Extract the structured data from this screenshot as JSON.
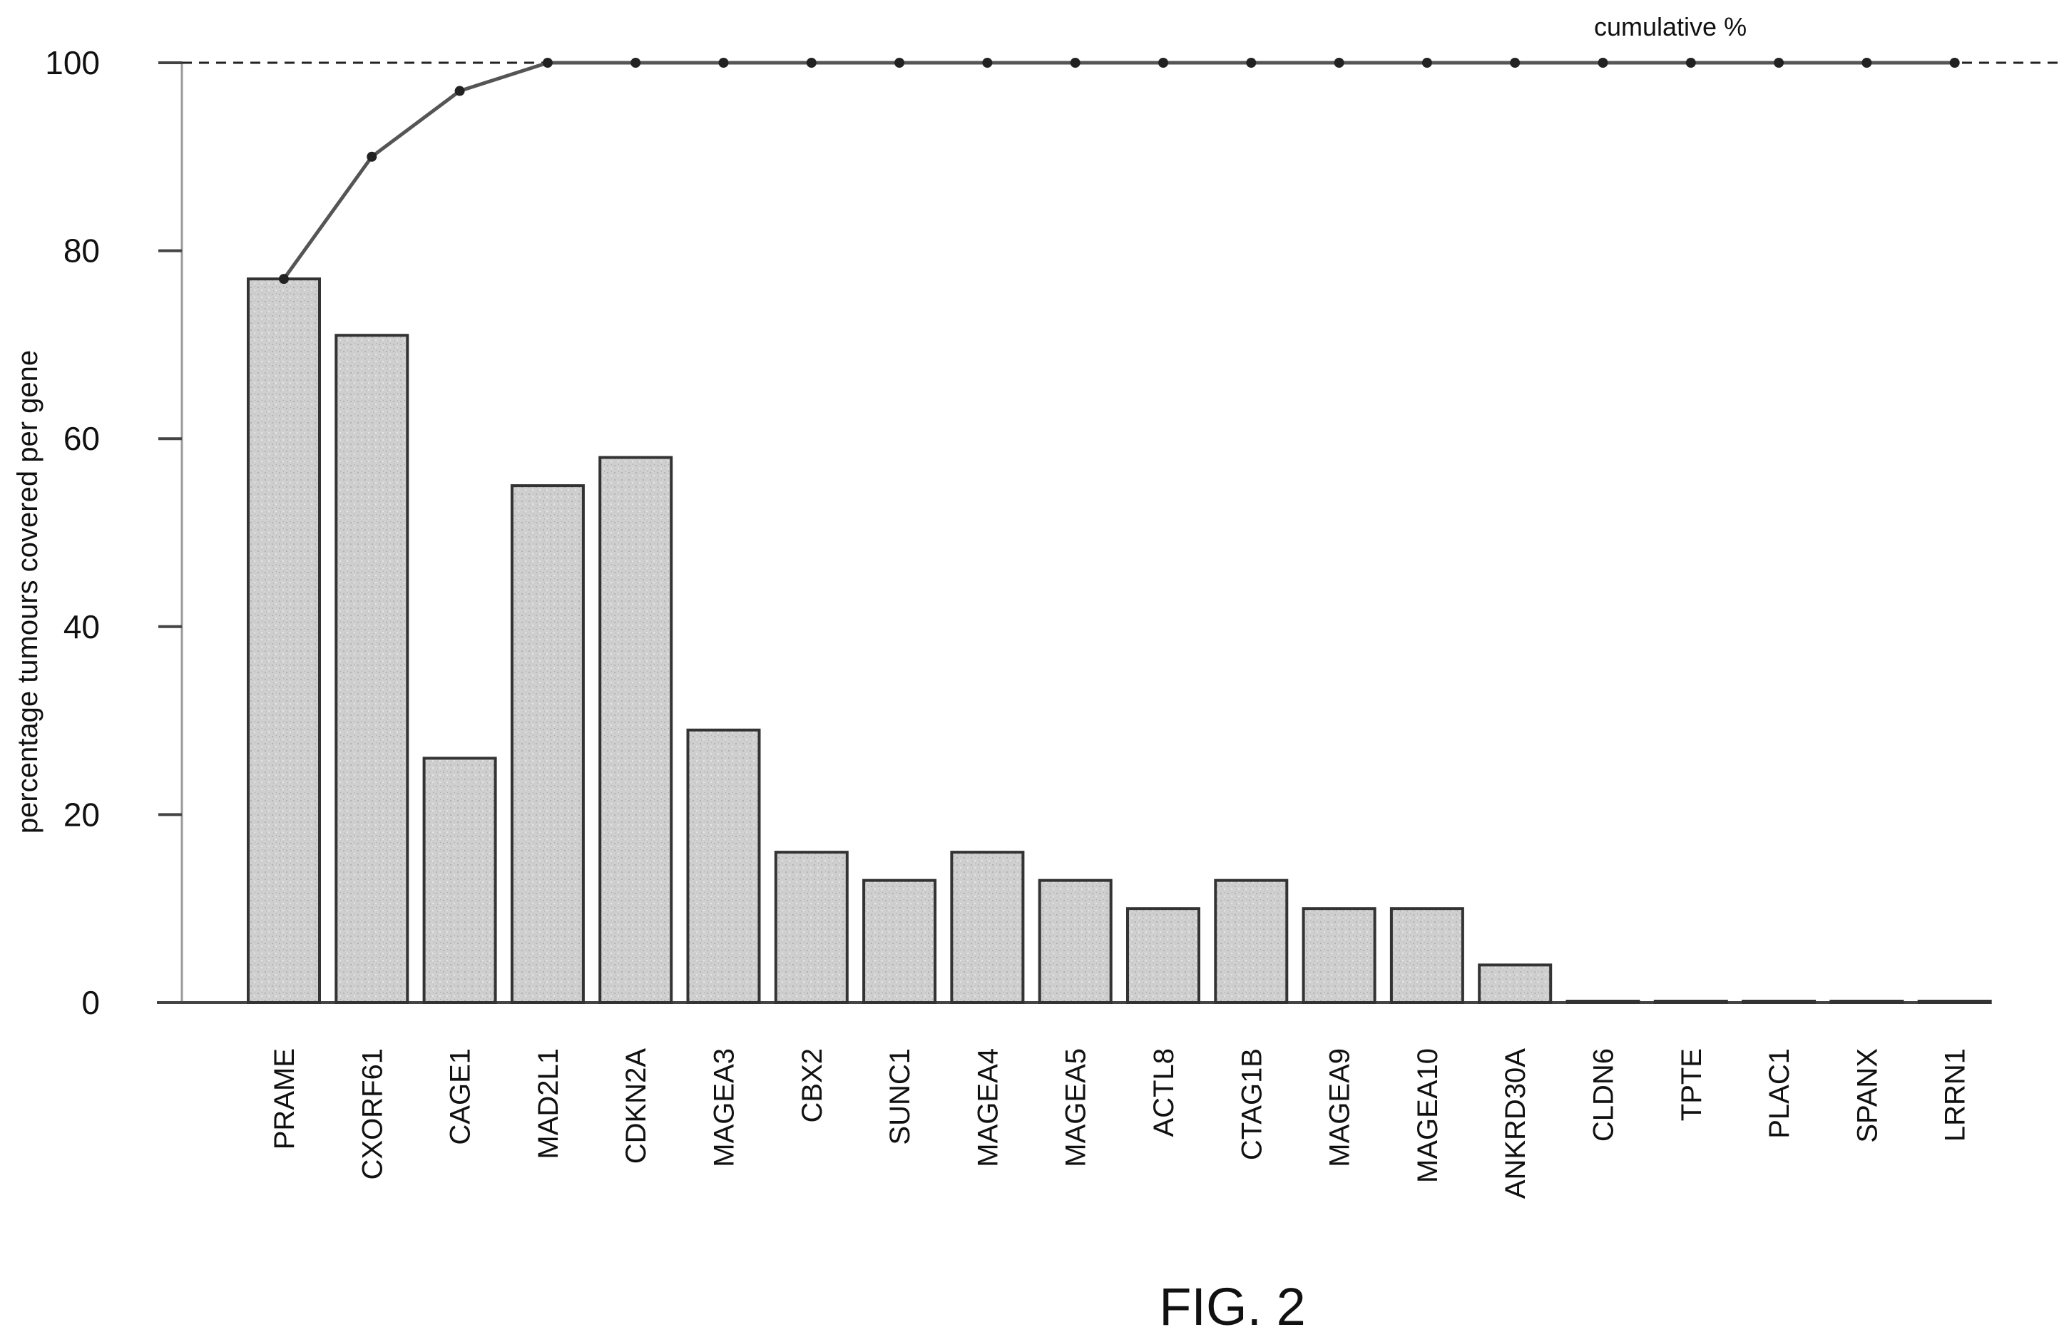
{
  "chart_data": {
    "type": "bar",
    "title": "",
    "xlabel": "",
    "ylabel": "percentage tumours covered per gene",
    "ylim": [
      0,
      100
    ],
    "yticks": [
      0,
      20,
      40,
      60,
      80,
      100
    ],
    "grid": false,
    "categories": [
      "PRAME",
      "CXORF61",
      "CAGE1",
      "MAD2L1",
      "CDKN2A",
      "MAGEA3",
      "CBX2",
      "SUNC1",
      "MAGEA4",
      "MAGEA5",
      "ACTL8",
      "CTAG1B",
      "MAGEA9",
      "MAGEA10",
      "ANKRD30A",
      "CLDN6",
      "TPTE",
      "PLAC1",
      "SPANX",
      "LRRN1"
    ],
    "series": [
      {
        "kind": "bar",
        "values": [
          77,
          71,
          26,
          55,
          58,
          29,
          16,
          13,
          16,
          13,
          10,
          13,
          10,
          10,
          4,
          0,
          0,
          0,
          0,
          0
        ],
        "color": "#d2d2d2"
      },
      {
        "kind": "line",
        "name": "cumulative %",
        "values": [
          77,
          90,
          97,
          100,
          100,
          100,
          100,
          100,
          100,
          100,
          100,
          100,
          100,
          100,
          100,
          100,
          100,
          100,
          100,
          100
        ],
        "color": "#555555"
      }
    ],
    "reference_line": {
      "value": 100,
      "style": "dashed"
    }
  },
  "caption": "FIG. 2"
}
